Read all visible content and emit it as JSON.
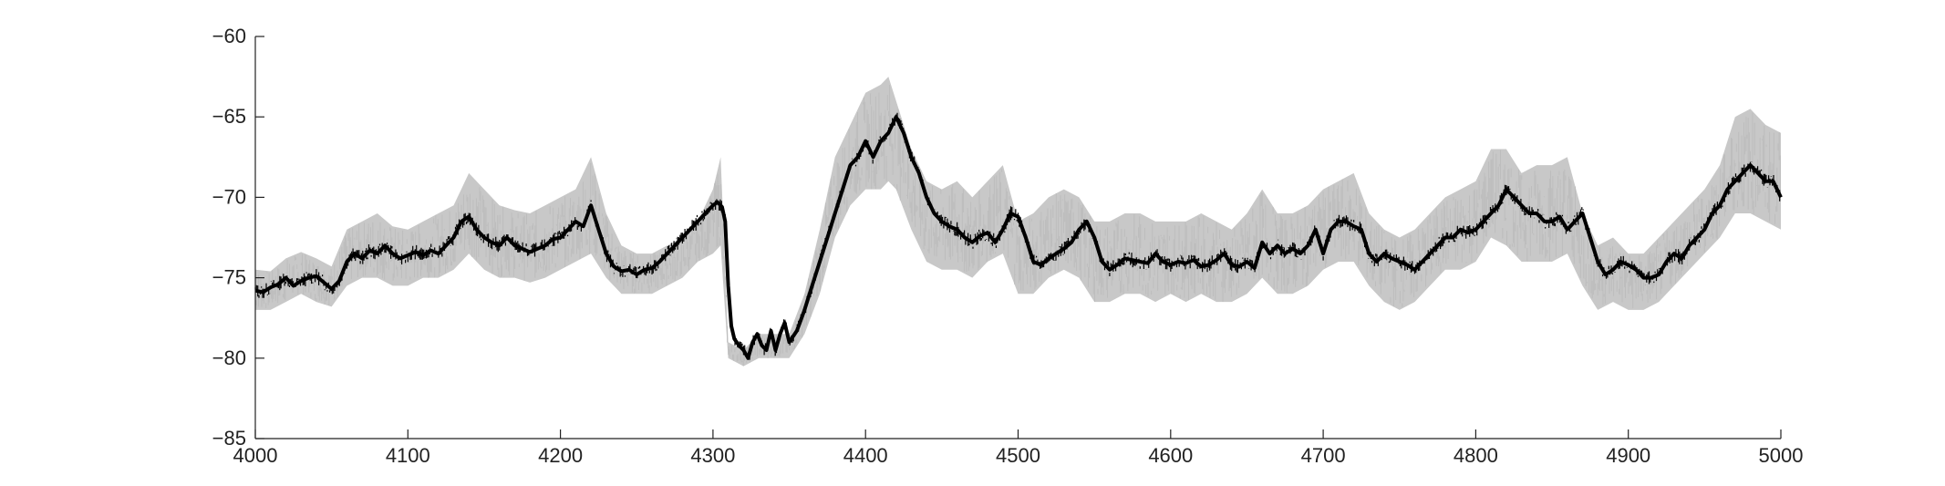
{
  "chart_data": {
    "type": "line",
    "title": "",
    "xlabel": "",
    "ylabel": "",
    "xlim": [
      4000,
      5000
    ],
    "ylim": [
      -85,
      -60
    ],
    "xticks": [
      4000,
      4100,
      4200,
      4300,
      4400,
      4500,
      4600,
      4700,
      4800,
      4900,
      5000
    ],
    "yticks": [
      -60,
      -65,
      -70,
      -75,
      -80,
      -85
    ],
    "grid": false,
    "series": [
      {
        "style": "band",
        "color": "#c8c8c8",
        "x": [
          4000,
          4010,
          4020,
          4030,
          4040,
          4050,
          4060,
          4070,
          4080,
          4090,
          4100,
          4110,
          4120,
          4130,
          4140,
          4150,
          4160,
          4170,
          4180,
          4190,
          4200,
          4210,
          4220,
          4230,
          4240,
          4250,
          4260,
          4270,
          4280,
          4290,
          4300,
          4305,
          4310,
          4320,
          4330,
          4340,
          4350,
          4360,
          4370,
          4380,
          4390,
          4400,
          4410,
          4415,
          4420,
          4430,
          4440,
          4450,
          4460,
          4470,
          4480,
          4490,
          4500,
          4510,
          4520,
          4530,
          4540,
          4550,
          4560,
          4570,
          4580,
          4590,
          4600,
          4610,
          4620,
          4630,
          4640,
          4650,
          4660,
          4670,
          4680,
          4690,
          4700,
          4710,
          4720,
          4730,
          4740,
          4750,
          4760,
          4770,
          4780,
          4790,
          4800,
          4810,
          4820,
          4830,
          4840,
          4850,
          4860,
          4870,
          4880,
          4890,
          4900,
          4910,
          4920,
          4930,
          4940,
          4950,
          4960,
          4970,
          4980,
          4990,
          5000
        ],
        "upper": [
          -74.5,
          -74.6,
          -73.8,
          -73.4,
          -73.8,
          -74.3,
          -72.0,
          -71.5,
          -71.0,
          -71.8,
          -72.0,
          -71.5,
          -71.0,
          -70.5,
          -68.5,
          -69.5,
          -70.5,
          -70.8,
          -71.0,
          -70.5,
          -70.0,
          -69.5,
          -67.5,
          -71.0,
          -73.0,
          -73.5,
          -73.5,
          -73.0,
          -72.5,
          -71.5,
          -69.5,
          -67.5,
          -79.0,
          -79.5,
          -78.5,
          -78.5,
          -78.5,
          -76.0,
          -72.0,
          -67.5,
          -65.5,
          -63.5,
          -63.0,
          -62.5,
          -64.0,
          -67.0,
          -69.0,
          -69.5,
          -69.0,
          -70.0,
          -69.0,
          -68.0,
          -71.5,
          -71.0,
          -70.0,
          -69.5,
          -70.0,
          -71.5,
          -71.5,
          -71.0,
          -71.0,
          -71.5,
          -71.5,
          -71.5,
          -71.0,
          -71.5,
          -72.0,
          -71.0,
          -69.5,
          -71.0,
          -71.0,
          -70.5,
          -69.5,
          -69.0,
          -68.5,
          -71.0,
          -72.0,
          -72.5,
          -72.0,
          -71.0,
          -70.0,
          -69.5,
          -69.0,
          -67.0,
          -67.0,
          -68.5,
          -68.0,
          -68.0,
          -67.5,
          -71.0,
          -73.0,
          -72.5,
          -73.5,
          -73.5,
          -72.5,
          -71.5,
          -70.5,
          -69.5,
          -68.0,
          -65.0,
          -64.5,
          -65.5,
          -66.0
        ],
        "lower": [
          -77.0,
          -77.0,
          -76.5,
          -76.0,
          -76.5,
          -76.8,
          -75.5,
          -75.0,
          -75.0,
          -75.5,
          -75.5,
          -75.0,
          -75.0,
          -74.5,
          -73.5,
          -74.5,
          -75.0,
          -75.0,
          -75.3,
          -75.0,
          -74.5,
          -74.0,
          -73.5,
          -75.0,
          -76.0,
          -76.0,
          -76.0,
          -75.5,
          -75.0,
          -74.0,
          -73.5,
          -73.0,
          -80.0,
          -80.5,
          -80.0,
          -80.0,
          -80.0,
          -78.5,
          -76.0,
          -72.5,
          -70.5,
          -69.5,
          -69.5,
          -69.0,
          -69.5,
          -72.0,
          -74.0,
          -74.5,
          -74.5,
          -75.0,
          -74.0,
          -73.5,
          -76.0,
          -76.0,
          -75.0,
          -74.5,
          -75.0,
          -76.5,
          -76.5,
          -76.0,
          -76.0,
          -76.5,
          -76.0,
          -76.5,
          -76.0,
          -76.5,
          -76.5,
          -76.0,
          -75.0,
          -76.0,
          -76.0,
          -75.5,
          -74.5,
          -74.0,
          -74.0,
          -75.5,
          -76.5,
          -77.0,
          -76.5,
          -75.5,
          -74.5,
          -74.5,
          -74.0,
          -72.5,
          -73.0,
          -74.0,
          -74.0,
          -74.0,
          -73.5,
          -75.5,
          -77.0,
          -76.5,
          -77.0,
          -77.0,
          -76.5,
          -75.5,
          -74.5,
          -73.5,
          -72.5,
          -71.0,
          -71.0,
          -71.5,
          -72.0
        ]
      },
      {
        "style": "line",
        "color": "#000000",
        "x": [
          4000,
          4005,
          4010,
          4015,
          4020,
          4025,
          4030,
          4035,
          4040,
          4045,
          4050,
          4055,
          4060,
          4065,
          4070,
          4075,
          4080,
          4085,
          4090,
          4095,
          4100,
          4105,
          4110,
          4115,
          4120,
          4125,
          4130,
          4135,
          4140,
          4145,
          4150,
          4155,
          4160,
          4165,
          4170,
          4175,
          4180,
          4185,
          4190,
          4195,
          4200,
          4205,
          4210,
          4215,
          4220,
          4225,
          4230,
          4235,
          4240,
          4245,
          4250,
          4255,
          4260,
          4265,
          4270,
          4275,
          4280,
          4285,
          4290,
          4295,
          4300,
          4303,
          4306,
          4308,
          4310,
          4312,
          4314,
          4317,
          4320,
          4323,
          4326,
          4329,
          4332,
          4335,
          4338,
          4341,
          4344,
          4347,
          4350,
          4355,
          4360,
          4365,
          4370,
          4375,
          4380,
          4385,
          4390,
          4395,
          4400,
          4405,
          4410,
          4415,
          4420,
          4425,
          4430,
          4435,
          4440,
          4445,
          4450,
          4455,
          4460,
          4465,
          4470,
          4475,
          4480,
          4485,
          4490,
          4495,
          4500,
          4505,
          4510,
          4515,
          4520,
          4525,
          4530,
          4535,
          4540,
          4545,
          4550,
          4555,
          4560,
          4565,
          4570,
          4575,
          4580,
          4585,
          4590,
          4595,
          4600,
          4605,
          4610,
          4615,
          4620,
          4625,
          4630,
          4635,
          4640,
          4645,
          4650,
          4655,
          4660,
          4665,
          4670,
          4675,
          4680,
          4685,
          4690,
          4695,
          4700,
          4705,
          4710,
          4715,
          4720,
          4725,
          4730,
          4735,
          4740,
          4745,
          4750,
          4755,
          4760,
          4765,
          4770,
          4775,
          4780,
          4785,
          4790,
          4795,
          4800,
          4805,
          4810,
          4815,
          4820,
          4825,
          4830,
          4835,
          4840,
          4845,
          4850,
          4855,
          4860,
          4865,
          4870,
          4875,
          4880,
          4885,
          4890,
          4895,
          4900,
          4905,
          4910,
          4915,
          4920,
          4925,
          4930,
          4935,
          4940,
          4945,
          4950,
          4955,
          4960,
          4965,
          4970,
          4975,
          4980,
          4985,
          4990,
          4995,
          5000
        ],
        "y": [
          -75.8,
          -75.9,
          -75.6,
          -75.4,
          -75.0,
          -75.5,
          -75.2,
          -75.0,
          -74.9,
          -75.3,
          -75.7,
          -75.2,
          -74.0,
          -73.5,
          -73.8,
          -73.3,
          -73.5,
          -73.0,
          -73.5,
          -73.8,
          -73.6,
          -73.4,
          -73.6,
          -73.3,
          -73.5,
          -73.0,
          -72.5,
          -71.5,
          -71.2,
          -72.0,
          -72.5,
          -72.8,
          -73.0,
          -72.5,
          -73.0,
          -73.2,
          -73.4,
          -73.2,
          -73.0,
          -72.6,
          -72.5,
          -72.0,
          -71.5,
          -71.8,
          -70.5,
          -72.0,
          -73.5,
          -74.3,
          -74.6,
          -74.5,
          -74.8,
          -74.5,
          -74.4,
          -74.0,
          -73.5,
          -73.0,
          -72.5,
          -72.0,
          -71.5,
          -71.0,
          -70.5,
          -70.3,
          -70.6,
          -71.5,
          -75.5,
          -78.0,
          -78.8,
          -79.2,
          -79.5,
          -80.0,
          -79.0,
          -78.5,
          -79.2,
          -79.5,
          -78.3,
          -79.5,
          -78.5,
          -77.8,
          -79.0,
          -78.3,
          -77.0,
          -75.5,
          -74.0,
          -72.5,
          -71.0,
          -69.5,
          -68.0,
          -67.5,
          -66.5,
          -67.5,
          -66.5,
          -66.0,
          -65.0,
          -66.0,
          -67.5,
          -68.5,
          -70.0,
          -71.0,
          -71.5,
          -71.8,
          -72.0,
          -72.5,
          -72.8,
          -72.4,
          -72.2,
          -72.8,
          -72.0,
          -71.0,
          -71.2,
          -72.5,
          -74.0,
          -74.2,
          -73.8,
          -73.5,
          -73.2,
          -72.8,
          -72.0,
          -71.5,
          -72.5,
          -74.0,
          -74.5,
          -74.2,
          -73.8,
          -73.9,
          -74.0,
          -74.1,
          -73.5,
          -74.0,
          -74.2,
          -74.0,
          -74.1,
          -73.9,
          -74.3,
          -74.2,
          -73.9,
          -73.5,
          -74.2,
          -74.3,
          -74.0,
          -74.4,
          -72.8,
          -73.5,
          -73.0,
          -73.5,
          -73.2,
          -73.5,
          -73.0,
          -72.0,
          -73.5,
          -72.0,
          -71.5,
          -71.5,
          -71.8,
          -72.0,
          -73.5,
          -74.0,
          -73.5,
          -73.8,
          -74.0,
          -74.2,
          -74.5,
          -74.0,
          -73.5,
          -73.0,
          -72.5,
          -72.5,
          -72.0,
          -72.2,
          -72.0,
          -71.5,
          -71.0,
          -70.5,
          -69.5,
          -70.0,
          -70.5,
          -71.0,
          -71.0,
          -71.5,
          -71.5,
          -71.2,
          -72.0,
          -71.5,
          -71.0,
          -72.5,
          -74.0,
          -74.8,
          -74.5,
          -74.0,
          -74.2,
          -74.5,
          -75.0,
          -75.0,
          -74.8,
          -74.0,
          -73.5,
          -73.8,
          -73.0,
          -72.5,
          -72.0,
          -71.0,
          -70.5,
          -69.5,
          -69.0,
          -68.5,
          -68.0,
          -68.5,
          -69.0,
          -69.0,
          -70.0
        ]
      }
    ]
  }
}
